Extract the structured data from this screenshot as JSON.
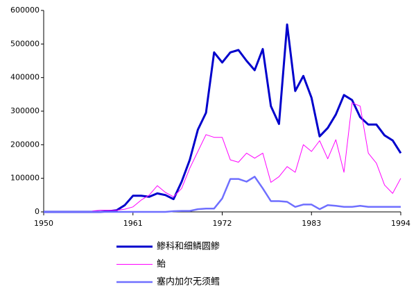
{
  "chart_data": {
    "type": "line",
    "x": [
      1950,
      1951,
      1952,
      1953,
      1954,
      1955,
      1956,
      1957,
      1958,
      1959,
      1960,
      1961,
      1962,
      1963,
      1964,
      1965,
      1966,
      1967,
      1968,
      1969,
      1970,
      1971,
      1972,
      1973,
      1974,
      1975,
      1976,
      1977,
      1978,
      1979,
      1980,
      1981,
      1982,
      1983,
      1984,
      1985,
      1986,
      1987,
      1988,
      1989,
      1990,
      1991,
      1992,
      1993,
      1994
    ],
    "series": [
      {
        "name": "鲹科和细鳞圆鲹",
        "color": "#0000cc",
        "values": [
          0,
          0,
          0,
          0,
          0,
          0,
          0,
          0,
          2000,
          5000,
          20000,
          48000,
          48000,
          45000,
          55000,
          50000,
          38000,
          90000,
          155000,
          245000,
          295000,
          475000,
          445000,
          475000,
          482000,
          450000,
          422000,
          485000,
          315000,
          262000,
          558000,
          360000,
          405000,
          340000,
          225000,
          250000,
          290000,
          348000,
          333000,
          282000,
          260000,
          260000,
          228000,
          213000,
          175000
        ]
      },
      {
        "name": "鲐",
        "color": "#ff00ff",
        "values": [
          null,
          null,
          null,
          null,
          null,
          null,
          3000,
          5000,
          5000,
          5000,
          8000,
          15000,
          35000,
          50000,
          78000,
          58000,
          45000,
          70000,
          130000,
          180000,
          230000,
          222000,
          222000,
          155000,
          148000,
          175000,
          160000,
          175000,
          88000,
          105000,
          135000,
          118000,
          200000,
          180000,
          212000,
          158000,
          215000,
          118000,
          325000,
          315000,
          175000,
          145000,
          80000,
          55000,
          100000
        ]
      },
      {
        "name": "塞内加尔无须鳕",
        "color": "#6f6fff",
        "values": [
          0,
          0,
          0,
          0,
          0,
          0,
          0,
          0,
          0,
          0,
          0,
          0,
          0,
          0,
          0,
          0,
          2000,
          3000,
          3000,
          8000,
          10000,
          10000,
          40000,
          98000,
          98000,
          90000,
          105000,
          70000,
          32000,
          32000,
          30000,
          15000,
          22000,
          22000,
          8000,
          20000,
          18000,
          15000,
          15000,
          18000,
          15000,
          15000,
          15000,
          15000,
          15000
        ]
      }
    ],
    "xlim": [
      1950,
      1994
    ],
    "xticks": [
      1950,
      1961,
      1972,
      1983,
      1994
    ],
    "ylim": [
      0,
      600000
    ],
    "yticks": [
      0,
      100000,
      200000,
      300000,
      400000,
      500000,
      600000
    ]
  }
}
